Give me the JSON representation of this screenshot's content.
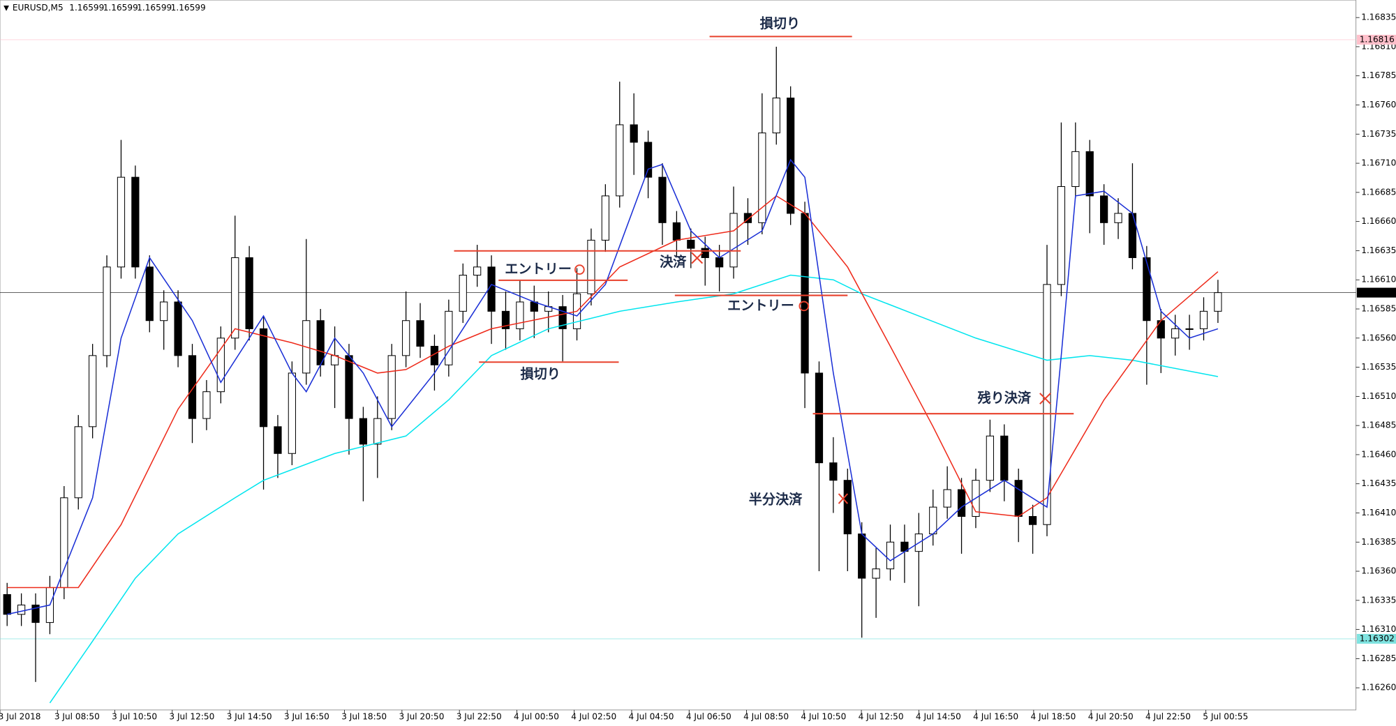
{
  "chart_data": {
    "type": "candlestick",
    "title": "EURUSD,M5",
    "header_values": [
      1.16599,
      1.16599,
      1.16599,
      1.16599
    ],
    "xtick_labels": [
      "3 Jul 2018",
      "3 Jul 08:50",
      "3 Jul 10:50",
      "3 Jul 12:50",
      "3 Jul 14:50",
      "3 Jul 16:50",
      "3 Jul 18:50",
      "3 Jul 20:50",
      "3 Jul 22:50",
      "4 Jul 00:50",
      "4 Jul 02:50",
      "4 Jul 04:50",
      "4 Jul 06:50",
      "4 Jul 08:50",
      "4 Jul 10:50",
      "4 Jul 12:50",
      "4 Jul 14:50",
      "4 Jul 16:50",
      "4 Jul 18:50",
      "4 Jul 20:50",
      "4 Jul 22:50",
      "5 Jul 00:55"
    ],
    "ylim": [
      1.16241,
      1.1685
    ],
    "yticks": [
      1.16835,
      {
        "value": 1.1681,
        "label": "1.16810"
      },
      1.16785,
      {
        "value": 1.1676,
        "label": "1.16760"
      },
      1.16735,
      {
        "value": 1.1671,
        "label": "1.16710"
      },
      1.16685,
      {
        "value": 1.1666,
        "label": "1.16660"
      },
      1.16635,
      {
        "value": 1.1661,
        "label": "1.16610"
      },
      1.16585,
      {
        "value": 1.1656,
        "label": "1.16560"
      },
      1.16535,
      {
        "value": 1.1651,
        "label": "1.16510"
      },
      1.16485,
      {
        "value": 1.1646,
        "label": "1.16460"
      },
      1.16435,
      {
        "value": 1.1641,
        "label": "1.16410"
      },
      1.16385,
      {
        "value": 1.1636,
        "label": "1.16360"
      },
      1.16335,
      {
        "value": 1.1631,
        "label": "1.16310"
      },
      1.16285,
      {
        "value": 1.1626,
        "label": "1.16260"
      }
    ],
    "up_color": "#ffffff",
    "down_color": "#000000",
    "open": [
      1.1634,
      1.16323,
      1.16331,
      1.16316,
      1.16346,
      1.16423,
      1.16484,
      1.16545,
      1.16621,
      1.16698,
      1.16621,
      1.16575,
      1.16591,
      1.16545,
      1.16491,
      1.16514,
      1.1656,
      1.16629,
      1.16568,
      1.16484,
      1.16461,
      1.1653,
      1.16575,
      1.16537,
      1.16545,
      1.16491,
      1.16469,
      1.16491,
      1.16545,
      1.16575,
      1.16553,
      1.16537,
      1.16583,
      1.16614,
      1.16621,
      1.16583,
      1.16568,
      1.16591,
      1.16583,
      1.16587,
      1.16568,
      1.16598,
      1.16644,
      1.16682,
      1.16743,
      1.16728,
      1.16698,
      1.16659,
      1.16644,
      1.16637,
      1.16629,
      1.16621,
      1.16667,
      1.16659,
      1.16736,
      1.16766,
      1.16667,
      1.1653,
      1.16453,
      1.16438,
      1.16392,
      1.16354,
      1.16362,
      1.16385,
      1.16377,
      1.16392,
      1.16415,
      1.1643,
      1.16407,
      1.16438,
      1.16476,
      1.16438,
      1.16407,
      1.164,
      1.16606,
      1.1669,
      1.1672,
      1.16682,
      1.16659,
      1.16667,
      1.16629,
      1.16575,
      1.1656,
      1.16568,
      1.16568,
      1.16583
    ],
    "high": [
      1.1635,
      1.16341,
      1.16341,
      1.16356,
      1.16433,
      1.16494,
      1.16555,
      1.16631,
      1.1673,
      1.16708,
      1.16631,
      1.16601,
      1.16601,
      1.16555,
      1.16524,
      1.1657,
      1.16665,
      1.16639,
      1.16578,
      1.16494,
      1.1654,
      1.16645,
      1.16585,
      1.1657,
      1.16555,
      1.16501,
      1.1651,
      1.16555,
      1.166,
      1.1659,
      1.16563,
      1.16593,
      1.16624,
      1.1664,
      1.16631,
      1.166,
      1.1661,
      1.16605,
      1.166,
      1.16597,
      1.1662,
      1.16654,
      1.16692,
      1.1678,
      1.1677,
      1.16738,
      1.1671,
      1.16669,
      1.16654,
      1.16647,
      1.1664,
      1.1669,
      1.1668,
      1.1677,
      1.1681,
      1.16776,
      1.16677,
      1.1654,
      1.16475,
      1.16448,
      1.16402,
      1.1638,
      1.164,
      1.164,
      1.1641,
      1.1643,
      1.1645,
      1.1644,
      1.16448,
      1.1649,
      1.16486,
      1.16448,
      1.16417,
      1.1664,
      1.16745,
      1.16745,
      1.1673,
      1.16692,
      1.1668,
      1.1671,
      1.16639,
      1.16585,
      1.1658,
      1.1658,
      1.16595,
      1.1661
    ],
    "low": [
      1.16313,
      1.16313,
      1.16265,
      1.16306,
      1.16336,
      1.16413,
      1.16474,
      1.16535,
      1.16611,
      1.16611,
      1.16565,
      1.1655,
      1.16535,
      1.1647,
      1.16481,
      1.16504,
      1.1655,
      1.16558,
      1.1643,
      1.1644,
      1.16451,
      1.1652,
      1.16527,
      1.165,
      1.1646,
      1.1642,
      1.1644,
      1.16481,
      1.16535,
      1.16543,
      1.16515,
      1.16527,
      1.16573,
      1.16604,
      1.16555,
      1.1655,
      1.16558,
      1.1656,
      1.16565,
      1.1654,
      1.16558,
      1.16588,
      1.16634,
      1.16672,
      1.167,
      1.1668,
      1.1664,
      1.1663,
      1.1662,
      1.16605,
      1.166,
      1.16611,
      1.1664,
      1.16649,
      1.16726,
      1.16657,
      1.165,
      1.1636,
      1.1641,
      1.1636,
      1.16303,
      1.1632,
      1.16352,
      1.1635,
      1.1633,
      1.16382,
      1.16405,
      1.16375,
      1.16397,
      1.16428,
      1.1642,
      1.16385,
      1.16375,
      1.1639,
      1.16596,
      1.1668,
      1.1665,
      1.1664,
      1.16645,
      1.16619,
      1.1652,
      1.1653,
      1.16545,
      1.1655,
      1.16558,
      1.16573
    ],
    "close": [
      1.16323,
      1.16331,
      1.16316,
      1.16346,
      1.16423,
      1.16484,
      1.16545,
      1.16621,
      1.16698,
      1.16621,
      1.16575,
      1.16591,
      1.16545,
      1.16491,
      1.16514,
      1.1656,
      1.16629,
      1.16568,
      1.16484,
      1.16461,
      1.1653,
      1.16575,
      1.16537,
      1.16545,
      1.16491,
      1.16469,
      1.16491,
      1.16545,
      1.16575,
      1.16553,
      1.16537,
      1.16583,
      1.16614,
      1.16621,
      1.16583,
      1.16568,
      1.16591,
      1.16583,
      1.16587,
      1.16568,
      1.16598,
      1.16644,
      1.16682,
      1.16743,
      1.16728,
      1.16698,
      1.16659,
      1.16644,
      1.16637,
      1.16629,
      1.16621,
      1.16667,
      1.16659,
      1.16736,
      1.16766,
      1.16667,
      1.1653,
      1.16453,
      1.16438,
      1.16392,
      1.16354,
      1.16362,
      1.16385,
      1.16377,
      1.16392,
      1.16415,
      1.1643,
      1.16407,
      1.16438,
      1.16476,
      1.16438,
      1.16407,
      1.164,
      1.16606,
      1.1669,
      1.1672,
      1.16682,
      1.16659,
      1.16667,
      1.16629,
      1.16575,
      1.1656,
      1.16568,
      1.16568,
      1.16583,
      1.16599
    ],
    "lines": [
      {
        "color": "#00e5ee",
        "x": [
          3,
          6,
          9,
          12,
          16,
          18,
          23,
          28,
          31,
          34,
          38,
          43,
          47,
          51,
          55,
          58,
          60,
          64,
          68,
          73,
          76,
          79,
          85
        ],
        "values": [
          1.16247,
          1.163,
          1.16354,
          1.16392,
          1.16423,
          1.16438,
          1.16461,
          1.16476,
          1.16507,
          1.16545,
          1.16568,
          1.16583,
          1.16591,
          1.16598,
          1.16614,
          1.1661,
          1.16598,
          1.16579,
          1.1656,
          1.16541,
          1.16545,
          1.16541,
          1.16527
        ]
      },
      {
        "color": "#ee2a1a",
        "x": [
          0,
          5,
          8,
          12,
          16,
          20,
          23,
          26,
          28,
          31,
          34,
          40,
          43,
          47,
          51,
          54,
          56,
          59,
          62,
          65,
          68,
          71,
          73,
          77,
          81,
          85
        ],
        "values": [
          1.16346,
          1.16346,
          1.164,
          1.16499,
          1.16568,
          1.16556,
          1.16545,
          1.1653,
          1.16533,
          1.16553,
          1.16568,
          1.16583,
          1.16621,
          1.16644,
          1.16652,
          1.16682,
          1.16667,
          1.16621,
          1.16553,
          1.16484,
          1.16411,
          1.16407,
          1.16423,
          1.16507,
          1.16575,
          1.16617
        ]
      },
      {
        "color": "#1a2fd6",
        "x": [
          0,
          3,
          6,
          8,
          10,
          13,
          15,
          18,
          20,
          21,
          23,
          25,
          27,
          30,
          32,
          34,
          37,
          40,
          42,
          45,
          46,
          48,
          50,
          53,
          55,
          56,
          58,
          60,
          62,
          65,
          67,
          70,
          73,
          74,
          75,
          77,
          79,
          81,
          83,
          85
        ],
        "values": [
          1.16323,
          1.16331,
          1.16423,
          1.1656,
          1.16629,
          1.16575,
          1.16522,
          1.16579,
          1.1653,
          1.16514,
          1.1656,
          1.1653,
          1.16484,
          1.1653,
          1.16568,
          1.16606,
          1.16591,
          1.16579,
          1.16606,
          1.16705,
          1.16709,
          1.16652,
          1.16629,
          1.16652,
          1.16713,
          1.16698,
          1.1653,
          1.16392,
          1.16369,
          1.16392,
          1.16415,
          1.16438,
          1.16415,
          1.16545,
          1.16682,
          1.16686,
          1.16667,
          1.16583,
          1.1656,
          1.16568
        ]
      }
    ],
    "price_labels": [
      {
        "value": 1.16816,
        "color": "#ffc0cb",
        "text_color": "#ffffff"
      },
      {
        "value": 1.16599,
        "color": "#000000",
        "text_color": "#ffffff"
      },
      {
        "value": 1.16302,
        "color": "#7fe3e0",
        "text_color": "#ffffff"
      }
    ],
    "annotations": [
      "損切り",
      "エントリー",
      "決済",
      "エントリー",
      "損切り",
      "残り決済",
      "半分決済"
    ]
  }
}
